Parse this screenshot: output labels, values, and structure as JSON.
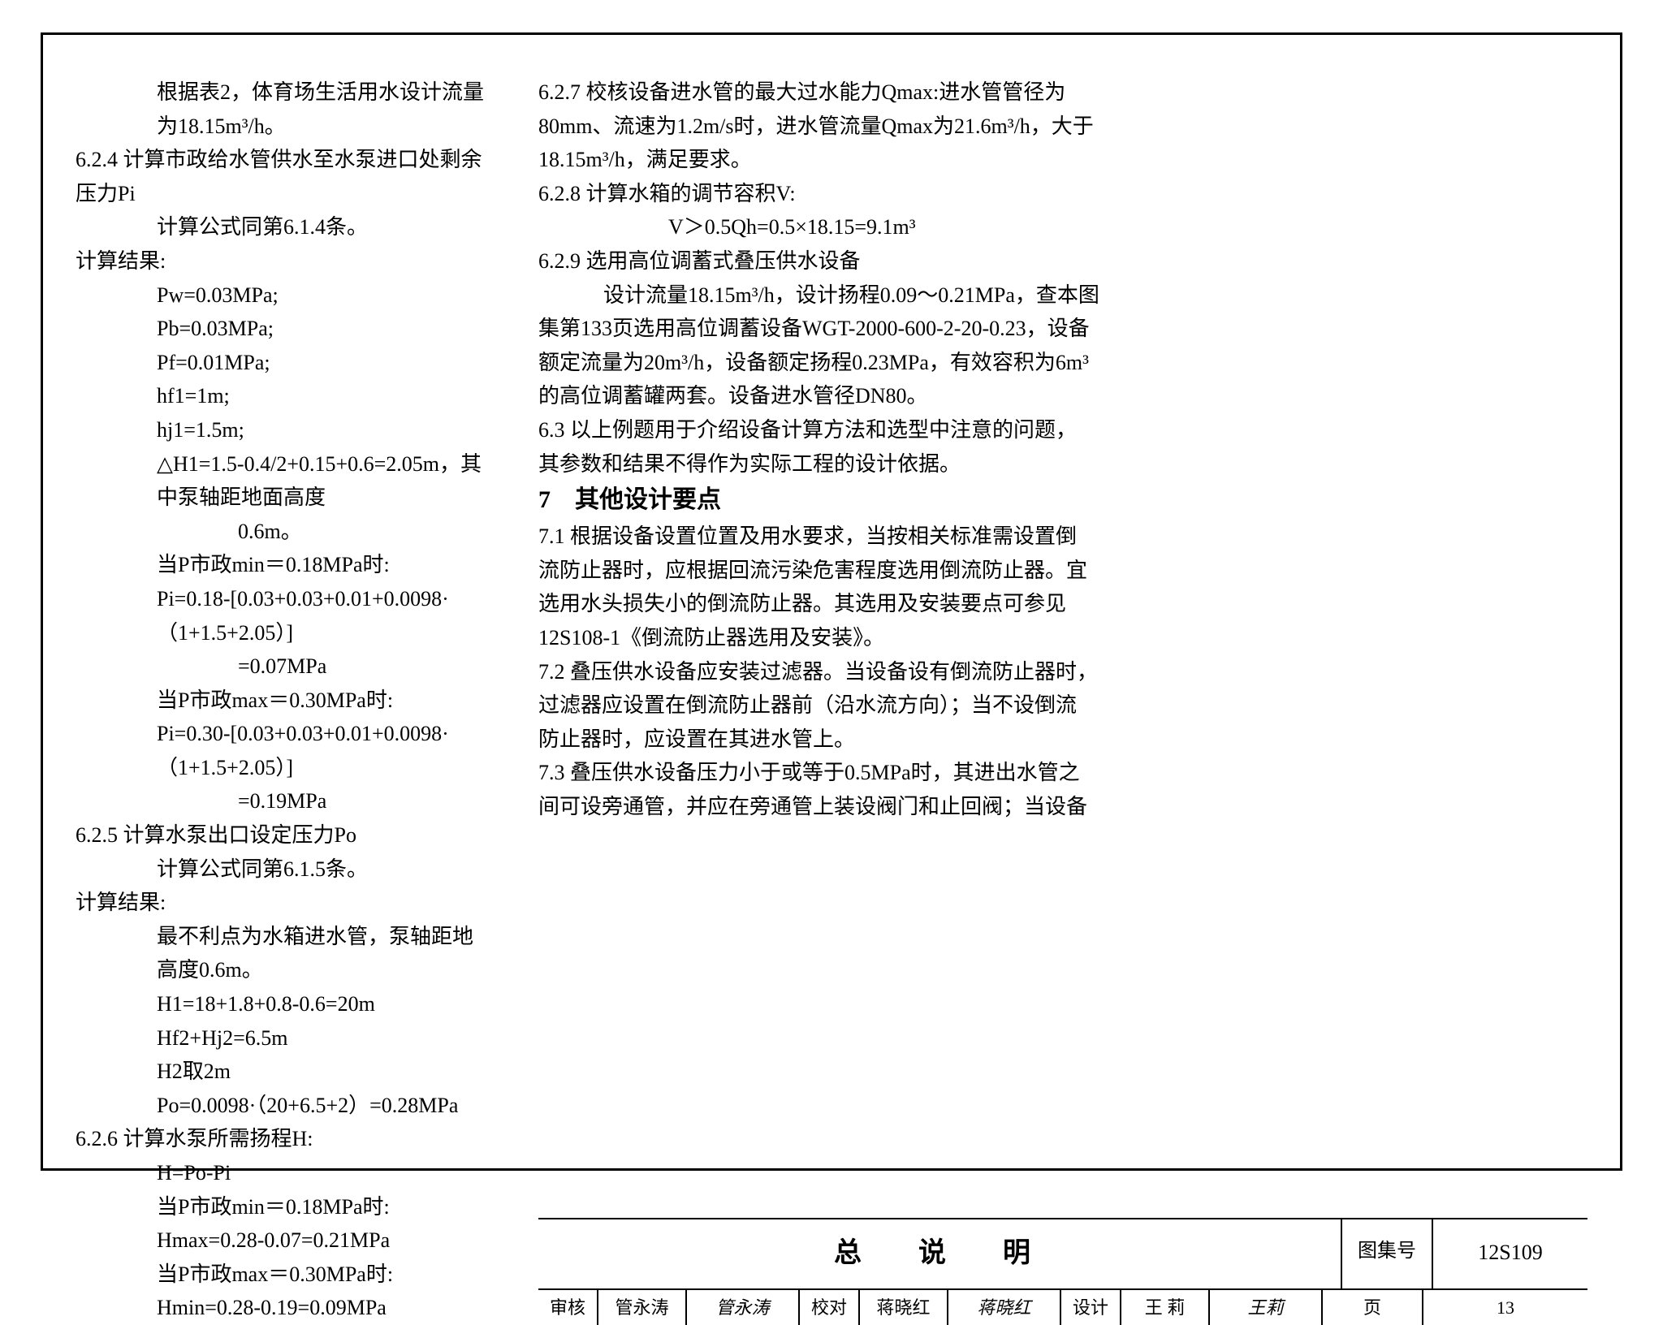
{
  "page": {
    "background_color": "#ffffff",
    "border_color": "#000000",
    "text_color": "#000000",
    "body_fontsize": 26,
    "heading_fontsize": 30
  },
  "left": {
    "l1": "根据表2，体育场生活用水设计流量为18.15m³/h。",
    "l2": "6.2.4 计算市政给水管供水至水泵进口处剩余压力Pi",
    "l3": "计算公式同第6.1.4条。",
    "l4": "计算结果:",
    "l5": "Pw=0.03MPa;",
    "l6": "Pb=0.03MPa;",
    "l7": "Pf=0.01MPa;",
    "l8": "hf1=1m;",
    "l9": "hj1=1.5m;",
    "l10": "△H1=1.5-0.4/2+0.15+0.6=2.05m，其中泵轴距地面高度",
    "l10b": "0.6m。",
    "l11": "当P市政min＝0.18MPa时:",
    "l12": "Pi=0.18-[0.03+0.03+0.01+0.0098·（1+1.5+2.05）]",
    "l12b": "=0.07MPa",
    "l13": "当P市政max＝0.30MPa时:",
    "l14": "Pi=0.30-[0.03+0.03+0.01+0.0098·（1+1.5+2.05）]",
    "l14b": "=0.19MPa",
    "l15": "6.2.5 计算水泵出口设定压力Po",
    "l16": "计算公式同第6.1.5条。",
    "l17": "计算结果:",
    "l18": "最不利点为水箱进水管，泵轴距地高度0.6m。",
    "l19": "H1=18+1.8+0.8-0.6=20m",
    "l20": "Hf2+Hj2=6.5m",
    "l21": "H2取2m",
    "l22": "Po=0.0098·（20+6.5+2）=0.28MPa",
    "l23": "6.2.6 计算水泵所需扬程H:",
    "l24": "H=Po-Pi",
    "l25": "当P市政min＝0.18MPa时:",
    "l26": "Hmax=0.28-0.07=0.21MPa",
    "l27": "当P市政max＝0.30MPa时:",
    "l28": "Hmin=0.28-0.19=0.09MPa"
  },
  "right": {
    "r1": "6.2.7 校核设备进水管的最大过水能力Qmax:进水管管径为",
    "r2": "80mm、流速为1.2m/s时，进水管流量Qmax为21.6m³/h，大于",
    "r3": "18.15m³/h，满足要求。",
    "r4": "6.2.8 计算水箱的调节容积V:",
    "r5": "V＞0.5Qh=0.5×18.15=9.1m³",
    "r6": "6.2.9 选用高位调蓄式叠压供水设备",
    "r7": "设计流量18.15m³/h，设计扬程0.09～0.21MPa，查本图",
    "r8": "集第133页选用高位调蓄设备WGT-2000-600-2-20-0.23，设备",
    "r9": "额定流量为20m³/h，设备额定扬程0.23MPa，有效容积为6m³",
    "r10": "的高位调蓄罐两套。设备进水管径DN80。",
    "r11": "6.3 以上例题用于介绍设备计算方法和选型中注意的问题，",
    "r12": "其参数和结果不得作为实际工程的设计依据。",
    "r13": "7　其他设计要点",
    "r14": "7.1 根据设备设置位置及用水要求，当按相关标准需设置倒",
    "r15": "流防止器时，应根据回流污染危害程度选用倒流防止器。宜",
    "r16": "选用水头损失小的倒流防止器。其选用及安装要点可参见",
    "r17": "12S108-1《倒流防止器选用及安装》。",
    "r18": "7.2 叠压供水设备应安装过滤器。当设备设有倒流防止器时，",
    "r19": "过滤器应设置在倒流防止器前（沿水流方向）；当不设倒流",
    "r20": "防止器时，应设置在其进水管上。",
    "r21": "7.3 叠压供水设备压力小于或等于0.5MPa时，其进出水管之",
    "r22": "间可设旁通管，并应在旁通管上装设阀门和止回阀；当设备"
  },
  "titleblock": {
    "title": "总　说　明",
    "atlas_label": "图集号",
    "atlas_value": "12S109",
    "review_label": "审核",
    "review_name": "管永涛",
    "review_sign": "管永涛",
    "check_label": "校对",
    "check_name": "蒋晓红",
    "check_sign": "蒋晓红",
    "design_label": "设计",
    "design_name": "王 莉",
    "design_sign": "王莉",
    "page_label": "页",
    "page_value": "13"
  }
}
